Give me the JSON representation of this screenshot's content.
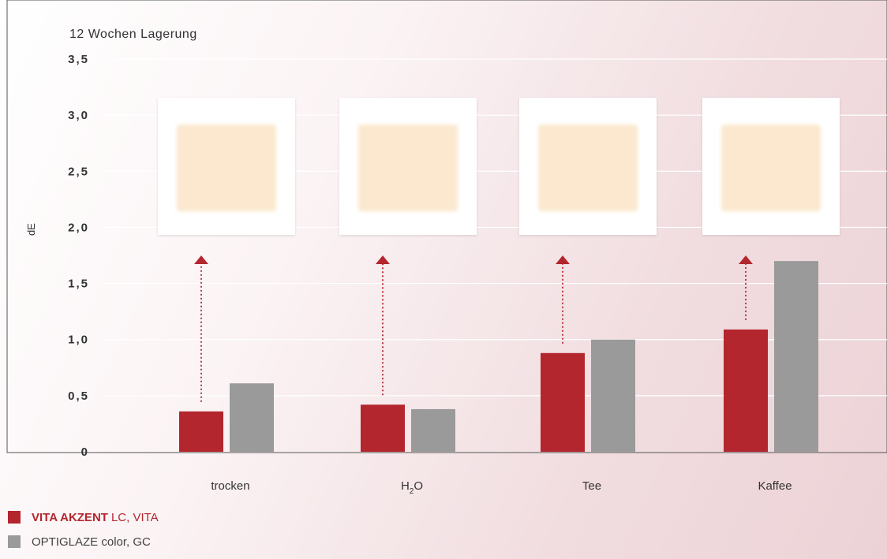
{
  "chart_data": {
    "type": "bar",
    "title": "12 Wochen Lagerung",
    "ylabel": "dE",
    "ylim": [
      0,
      3.5
    ],
    "yticks": [
      0,
      0.5,
      1.0,
      1.5,
      2.0,
      2.5,
      3.0,
      3.5
    ],
    "ytick_labels": [
      "0",
      "0,5",
      "1,0",
      "1,5",
      "2,0",
      "2,5",
      "3,0",
      "3,5"
    ],
    "categories": [
      "trocken",
      "H2O",
      "Tee",
      "Kaffee"
    ],
    "category_labels": [
      {
        "main": "trocken",
        "sub": "",
        "tail": ""
      },
      {
        "main": "H",
        "sub": "2",
        "tail": "O"
      },
      {
        "main": "Tee",
        "sub": "",
        "tail": ""
      },
      {
        "main": "Kaffee",
        "sub": "",
        "tail": ""
      }
    ],
    "series": [
      {
        "name": "VITA AKZENT LC, VITA",
        "color": "#b3262e",
        "values": [
          0.36,
          0.42,
          0.88,
          1.09
        ]
      },
      {
        "name": "OPTIGLAZE color, GC",
        "color": "#9a9a9a",
        "values": [
          0.61,
          0.38,
          1.0,
          1.7
        ]
      }
    ],
    "grid": true,
    "legend_position": "bottom-left",
    "annotations": "dotted red arrows from VITA bars up to sample swatch images"
  },
  "legend": [
    {
      "brand": "VITA AKZENT",
      "rest": "LC, VITA",
      "color": "#b3262e",
      "brand_color": "#b3262e",
      "rest_color": "#b3262e"
    },
    {
      "brand": "",
      "rest": "OPTIGLAZE color, GC",
      "color": "#9a9a9a",
      "brand_color": "#444444",
      "rest_color": "#444444"
    }
  ],
  "colors": {
    "arrow": "#b3262e",
    "grid": "#ffffff",
    "axis": "#555555",
    "swatch": "#fbe8cf"
  }
}
